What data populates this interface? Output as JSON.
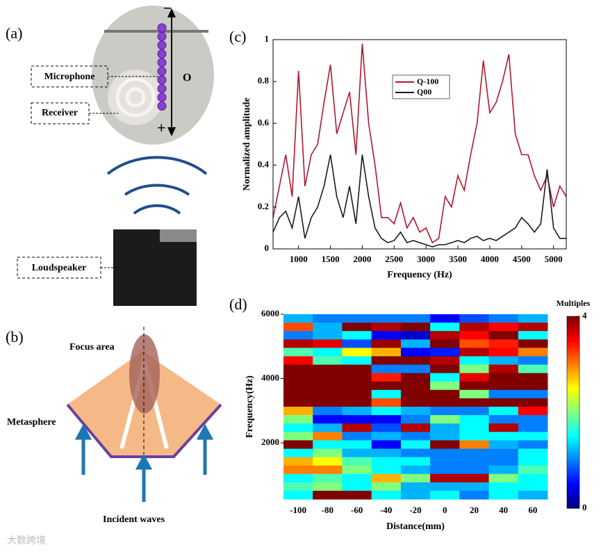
{
  "panel_a": {
    "label": "(a)",
    "microphone": "Microphone",
    "receiver": "Receiver",
    "loudspeaker": "Loudspeaker",
    "origin": "O",
    "minus": "−",
    "plus": "+"
  },
  "panel_b": {
    "label": "(b)",
    "focus": "Focus area",
    "metasphere": "Metasphere",
    "incident": "Incident waves"
  },
  "watermark": "大数跨境",
  "chart_data": [
    {
      "type": "line",
      "panel_label": "(c)",
      "x_label": "Frequency (Hz)",
      "y_label": "Normalized amplitude",
      "x": [
        600,
        700,
        800,
        900,
        1000,
        1100,
        1200,
        1300,
        1400,
        1500,
        1600,
        1700,
        1800,
        1900,
        2000,
        2100,
        2200,
        2300,
        2400,
        2500,
        2600,
        2700,
        2800,
        2900,
        3000,
        3100,
        3200,
        3300,
        3400,
        3500,
        3600,
        3700,
        3800,
        3900,
        4000,
        4100,
        4200,
        4300,
        4400,
        4500,
        4600,
        4700,
        4800,
        4900,
        5000,
        5100,
        5200
      ],
      "series": [
        {
          "name": "Q-100",
          "color": "#b0162c",
          "values": [
            0.15,
            0.3,
            0.45,
            0.25,
            0.85,
            0.3,
            0.45,
            0.5,
            0.7,
            0.88,
            0.55,
            0.65,
            0.75,
            0.45,
            0.98,
            0.6,
            0.4,
            0.15,
            0.15,
            0.12,
            0.22,
            0.1,
            0.15,
            0.08,
            0.1,
            0.03,
            0.05,
            0.25,
            0.2,
            0.35,
            0.28,
            0.45,
            0.6,
            0.9,
            0.65,
            0.7,
            0.8,
            0.93,
            0.55,
            0.45,
            0.45,
            0.35,
            0.28,
            0.35,
            0.2,
            0.3,
            0.25
          ]
        },
        {
          "name": "Q00",
          "color": "#1a1a1a",
          "values": [
            0.08,
            0.15,
            0.18,
            0.1,
            0.25,
            0.05,
            0.15,
            0.2,
            0.3,
            0.45,
            0.25,
            0.15,
            0.3,
            0.12,
            0.45,
            0.25,
            0.1,
            0.05,
            0.03,
            0.04,
            0.08,
            0.03,
            0.04,
            0.03,
            0.02,
            0.01,
            0.02,
            0.02,
            0.03,
            0.04,
            0.03,
            0.05,
            0.06,
            0.04,
            0.05,
            0.04,
            0.06,
            0.08,
            0.1,
            0.15,
            0.12,
            0.08,
            0.12,
            0.38,
            0.1,
            0.05,
            0.05
          ]
        }
      ],
      "xlim": [
        600,
        5200
      ],
      "xticks": [
        1000,
        1500,
        2000,
        2500,
        3000,
        3500,
        4000,
        4500,
        5000
      ],
      "ylim": [
        0,
        1
      ],
      "yticks": [
        0,
        0.2,
        0.4,
        0.6,
        0.8,
        1
      ]
    },
    {
      "type": "heatmap",
      "panel_label": "(d)",
      "x_label": "Distance(mm)",
      "y_label": "Frequency(Hz)",
      "colorbar_label": "Multiples",
      "categories": [
        -100,
        -80,
        -60,
        -40,
        -20,
        0,
        20,
        40,
        60
      ],
      "ylim": [
        250,
        6000
      ],
      "yticks": [
        2000,
        4000,
        6000
      ],
      "clim": [
        0,
        4
      ],
      "cticks": [
        0,
        4
      ],
      "z": [
        [
          1.2,
          1,
          1,
          1,
          1,
          0.5,
          0.8,
          1,
          1.2
        ],
        [
          3.2,
          1.2,
          4,
          3.8,
          4,
          1.5,
          3.8,
          3.5,
          3.8
        ],
        [
          1,
          1.2,
          1.5,
          0.5,
          0.3,
          3.8,
          3.5,
          4,
          1.5
        ],
        [
          3.8,
          3.6,
          0.8,
          3.9,
          1.2,
          4,
          3.2,
          3.4,
          4
        ],
        [
          1.8,
          1.5,
          2.5,
          2.8,
          0.5,
          0.6,
          3.8,
          3.5,
          3
        ],
        [
          3.5,
          1.8,
          1.5,
          4,
          4,
          3.8,
          1.5,
          1.2,
          1
        ],
        [
          4,
          4,
          4,
          1,
          1,
          4,
          2,
          3.8,
          1.8
        ],
        [
          4,
          4,
          4,
          3.4,
          4,
          1.5,
          3.6,
          4,
          4
        ],
        [
          4,
          4,
          4,
          4,
          4,
          2,
          4,
          4,
          4
        ],
        [
          4,
          4,
          4,
          1.5,
          4,
          4,
          2,
          1,
          1
        ],
        [
          4,
          4,
          4,
          3.2,
          4,
          4,
          4,
          4,
          4
        ],
        [
          2.8,
          1,
          1.2,
          1.5,
          1.2,
          1,
          1,
          1.5,
          3.5
        ],
        [
          2,
          0.5,
          0.5,
          0.5,
          1,
          2,
          1.5,
          1,
          1
        ],
        [
          1.5,
          1.2,
          3.8,
          0.8,
          3.8,
          1.2,
          1.5,
          3.8,
          1
        ],
        [
          2,
          3,
          1,
          1.2,
          1,
          1.2,
          1.5,
          1.5,
          1.5
        ],
        [
          4,
          1.5,
          1.5,
          0.5,
          1.5,
          4,
          3,
          1.2,
          1
        ],
        [
          1.5,
          2,
          1.2,
          1.2,
          1,
          1,
          1,
          1,
          1.5
        ],
        [
          2.8,
          2.5,
          1.8,
          1.5,
          1.5,
          1,
          1,
          1,
          1.5
        ],
        [
          3,
          3,
          2,
          1.5,
          1.2,
          1,
          1,
          1.2,
          1.8
        ],
        [
          1.5,
          1.8,
          1.5,
          2.8,
          2,
          3.8,
          3.8,
          2,
          1.5
        ],
        [
          1.8,
          2,
          1.5,
          2,
          1.2,
          1.2,
          1.2,
          1.5,
          1.5
        ],
        [
          1.5,
          4,
          4,
          1.5,
          1.2,
          1.5,
          1,
          1.5,
          1.2
        ]
      ]
    }
  ]
}
